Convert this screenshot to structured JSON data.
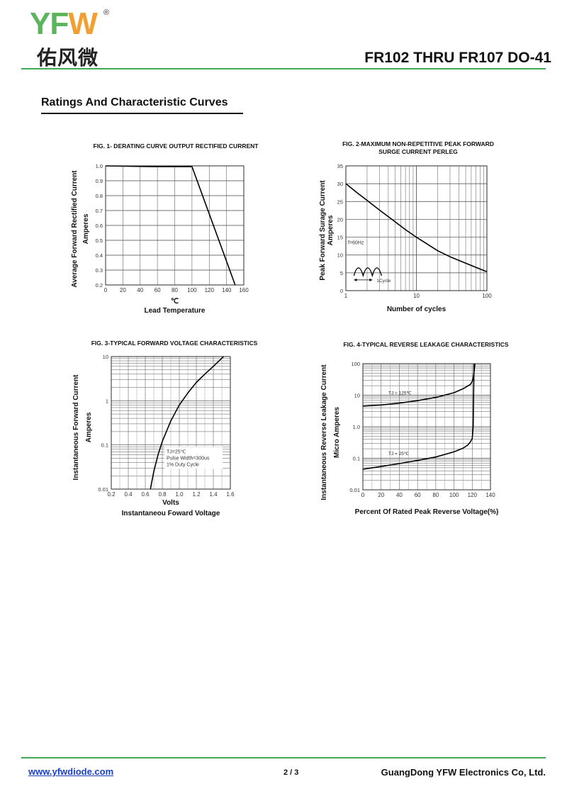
{
  "header": {
    "logo_letters": [
      "Y",
      "F",
      "W"
    ],
    "logo_registered": "®",
    "logo_chinese": "佑风微",
    "title": "FR102 THRU FR107  DO-41"
  },
  "section_title": "Ratings And  Characteristic Curves",
  "footer": {
    "website": "www.yfwdiode.com",
    "page": "2 / 3",
    "company": "GuangDong YFW Electronics Co, Ltd."
  },
  "chart_data": [
    {
      "id": "fig1",
      "type": "line",
      "title": "FIG. 1- DERATING CURVE OUTPUT RECTIFIED CURRENT",
      "ylabel": [
        "Average Forward Rectified Current",
        "Amperes"
      ],
      "xlabel": [
        "℃",
        "Lead Temperature"
      ],
      "xlim": [
        0,
        160
      ],
      "ylim": [
        0.2,
        1.0
      ],
      "x_ticks": [
        0,
        20,
        40,
        60,
        80,
        100,
        120,
        140,
        160
      ],
      "y_ticks": [
        0.2,
        0.3,
        0.4,
        0.5,
        0.6,
        0.7,
        0.8,
        0.9,
        1.0
      ],
      "x_tick_labels": [
        "0",
        "20",
        "40",
        "60",
        "80",
        "100",
        "120",
        "140",
        "160"
      ],
      "y_tick_labels": [
        "0.2",
        "0.3",
        "0.4",
        "0.5",
        "0.6",
        "0.7",
        "0.8",
        "0.9",
        "1.0"
      ],
      "grid": true,
      "series": [
        {
          "x": [
            0,
            55,
            100,
            150
          ],
          "y": [
            1.0,
            0.995,
            0.995,
            0.2
          ]
        }
      ]
    },
    {
      "id": "fig2",
      "type": "line",
      "title": [
        "FIG. 2-MAXIMUM NON-REPETITIVE PEAK FORWARD",
        "SURGE CURRENT PERLEG"
      ],
      "ylabel": [
        "Peak Forward Surage Current",
        "Amperes"
      ],
      "xlabel": [
        "Number of cycles"
      ],
      "x_scale": "log",
      "xlim": [
        1,
        100
      ],
      "ylim": [
        0,
        35
      ],
      "x_ticks": [
        1,
        10,
        100
      ],
      "y_ticks": [
        0,
        5,
        10,
        15,
        20,
        25,
        30,
        35
      ],
      "x_tick_labels": [
        "1",
        "10",
        "100"
      ],
      "y_tick_labels": [
        "0",
        "5",
        "10",
        "15",
        "20",
        "25",
        "30",
        "35"
      ],
      "grid": true,
      "annotations": [
        "f=60Hz",
        "1Cycle"
      ],
      "series": [
        {
          "x": [
            1,
            1.5,
            2,
            3,
            5,
            7,
            10,
            20,
            30,
            50,
            70,
            100
          ],
          "y": [
            30,
            27.2,
            25.3,
            22.6,
            19.3,
            17.1,
            15.0,
            11.2,
            9.5,
            7.7,
            6.5,
            5.3
          ]
        }
      ]
    },
    {
      "id": "fig3",
      "type": "line",
      "title": "FIG. 3-TYPICAL FORWARD VOLTAGE CHARACTERISTICS",
      "ylabel": [
        "Instantaneous Forward Current",
        "Amperes"
      ],
      "xlabel": [
        "Volts",
        "Instantaneou Foward Voltage"
      ],
      "y_scale": "log",
      "xlim": [
        0.2,
        1.6
      ],
      "ylim": [
        0.01,
        10
      ],
      "x_ticks": [
        0.2,
        0.4,
        0.6,
        0.8,
        1.0,
        1.2,
        1.4,
        1.6
      ],
      "y_ticks": [
        0.01,
        0.1,
        1,
        10
      ],
      "x_tick_labels": [
        "0.2",
        "0.4",
        "0.6",
        "0.8",
        "1.0",
        "1.2",
        "1.4",
        "1.6"
      ],
      "y_tick_labels": [
        "0.01",
        "0.1",
        "1",
        "10"
      ],
      "grid": true,
      "annotations": [
        "TJ=25℃",
        "Pulse Width=300us",
        "1% Duty Cycle"
      ],
      "series": [
        {
          "x": [
            0.66,
            0.7,
            0.75,
            0.8,
            0.9,
            1.0,
            1.1,
            1.2,
            1.3,
            1.4,
            1.52
          ],
          "y": [
            0.01,
            0.025,
            0.06,
            0.12,
            0.35,
            0.8,
            1.5,
            2.6,
            4.0,
            6.0,
            10
          ]
        }
      ]
    },
    {
      "id": "fig4",
      "type": "line",
      "title": "FIG. 4-TYPICAL REVERSE LEAKAGE CHARACTERISTICS",
      "ylabel": [
        "Instantaneous Reverse Leakage Current",
        "Micro Amperes"
      ],
      "xlabel": [
        "Percent Of Rated Peak Reverse Voltage(%)"
      ],
      "y_scale": "log",
      "xlim": [
        0,
        140
      ],
      "ylim": [
        0.01,
        100
      ],
      "x_ticks": [
        0,
        20,
        40,
        60,
        80,
        100,
        120,
        140
      ],
      "y_ticks": [
        0.01,
        0.1,
        1,
        10,
        100
      ],
      "x_tick_labels": [
        "0",
        "20",
        "40",
        "60",
        "80",
        "100",
        "120",
        "140"
      ],
      "y_tick_labels": [
        "0.01",
        "0.1",
        "1.0",
        "10",
        "100"
      ],
      "grid": true,
      "series": [
        {
          "name": "TJ = 125℃",
          "x": [
            0,
            20,
            40,
            60,
            80,
            100,
            110,
            118,
            120,
            121,
            122,
            123
          ],
          "y": [
            4.5,
            4.9,
            5.6,
            6.7,
            8.5,
            12,
            16,
            22,
            27,
            35,
            55,
            100
          ]
        },
        {
          "name": "TJ = 25℃",
          "x": [
            0,
            20,
            40,
            60,
            80,
            100,
            110,
            115,
            118,
            120,
            121,
            121.5,
            122
          ],
          "y": [
            0.045,
            0.055,
            0.068,
            0.085,
            0.11,
            0.16,
            0.21,
            0.26,
            0.33,
            0.42,
            1.0,
            10,
            100
          ]
        }
      ]
    }
  ]
}
